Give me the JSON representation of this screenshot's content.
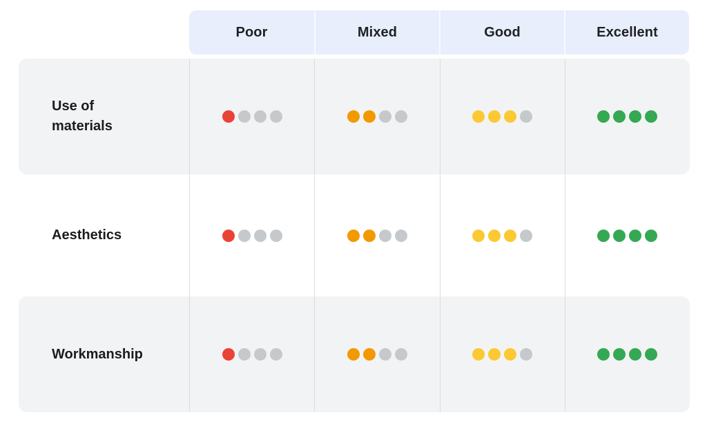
{
  "table": {
    "dots_per_cell": 4,
    "empty_dot_color": "#c6c9cc",
    "columns": [
      {
        "label": "Poor",
        "filled_dots": 1,
        "dot_color": "#ea4335"
      },
      {
        "label": "Mixed",
        "filled_dots": 2,
        "dot_color": "#f29900"
      },
      {
        "label": "Good",
        "filled_dots": 3,
        "dot_color": "#fcc934"
      },
      {
        "label": "Excellent",
        "filled_dots": 4,
        "dot_color": "#34a853"
      }
    ],
    "rows": [
      {
        "label": "Use of materials"
      },
      {
        "label": "Aesthetics"
      },
      {
        "label": "Workmanship"
      }
    ]
  },
  "colors": {
    "header_bg": "#e8eefb",
    "row_shaded_bg": "#f2f3f4",
    "divider": "#dcdcdc",
    "header_text": "#202124",
    "row_label_text": "#1c1c1c"
  },
  "chart_data": {
    "type": "table",
    "title": "",
    "row_labels": [
      "Use of materials",
      "Aesthetics",
      "Workmanship"
    ],
    "column_labels": [
      "Poor",
      "Mixed",
      "Good",
      "Excellent"
    ],
    "values_unit": "filled dots out of 4",
    "values": [
      [
        1,
        2,
        3,
        4
      ],
      [
        1,
        2,
        3,
        4
      ],
      [
        1,
        2,
        3,
        4
      ]
    ],
    "value_colors": {
      "Poor": "#ea4335",
      "Mixed": "#f29900",
      "Good": "#fcc934",
      "Excellent": "#34a853",
      "empty": "#c6c9cc"
    },
    "layout": {
      "grid": "column dividers only",
      "header_position": "top"
    }
  }
}
